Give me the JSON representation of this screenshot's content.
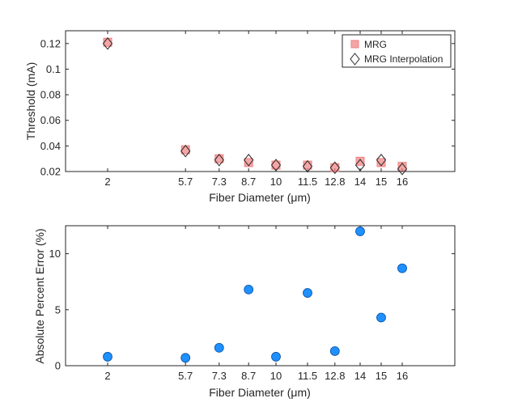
{
  "chart_data": [
    {
      "type": "scatter",
      "xlabel_main": "Fiber Diameter (",
      "xlabel_mu": "μ",
      "xlabel_end": "m)",
      "ylabel": "Threshold (mA)",
      "xlim": [
        0,
        18.5
      ],
      "ylim": [
        0.02,
        0.13
      ],
      "x_ticks": [
        2,
        5.7,
        7.3,
        8.7,
        10,
        11.5,
        12.8,
        14,
        15,
        16
      ],
      "x_tick_labels": [
        "2",
        "5.7",
        "7.3",
        "8.7",
        "10",
        "11.5",
        "12.8",
        "14",
        "15",
        "16"
      ],
      "y_ticks": [
        0.02,
        0.04,
        0.06,
        0.08,
        0.1,
        0.12
      ],
      "y_tick_labels": [
        "0.02",
        "0.04",
        "0.06",
        "0.08",
        "0.1",
        "0.12"
      ],
      "grid": false,
      "legend_position": "top-right",
      "series": [
        {
          "name": "MRG",
          "marker": "square",
          "color": "#f08080",
          "x": [
            2,
            5.7,
            7.3,
            8.7,
            10,
            11.5,
            12.8,
            14,
            15,
            16
          ],
          "y": [
            0.121,
            0.037,
            0.03,
            0.027,
            0.025,
            0.025,
            0.023,
            0.028,
            0.027,
            0.024
          ]
        },
        {
          "name": "MRG Interpolation",
          "marker": "diamond",
          "color": "#000000",
          "x": [
            2,
            5.7,
            7.3,
            8.7,
            10,
            11.5,
            12.8,
            14,
            15,
            16
          ],
          "y": [
            0.12,
            0.036,
            0.029,
            0.029,
            0.025,
            0.024,
            0.023,
            0.025,
            0.029,
            0.022
          ]
        }
      ]
    },
    {
      "type": "scatter",
      "xlabel_main": "Fiber Diameter (",
      "xlabel_mu": "μ",
      "xlabel_end": "m)",
      "ylabel": "Absolute Percent Error (%)",
      "xlim": [
        0,
        18.5
      ],
      "ylim": [
        0,
        12.5
      ],
      "x_ticks": [
        2,
        5.7,
        7.3,
        8.7,
        10,
        11.5,
        12.8,
        14,
        15,
        16
      ],
      "x_tick_labels": [
        "2",
        "5.7",
        "7.3",
        "8.7",
        "10",
        "11.5",
        "12.8",
        "14",
        "15",
        "16"
      ],
      "y_ticks": [
        0,
        5,
        10
      ],
      "y_tick_labels": [
        "0",
        "5",
        "10"
      ],
      "grid": false,
      "series": [
        {
          "marker": "circle",
          "color": "#1e90ff",
          "x": [
            2,
            5.7,
            7.3,
            8.7,
            10,
            11.5,
            12.8,
            14,
            15,
            16
          ],
          "y": [
            0.8,
            0.7,
            1.6,
            6.8,
            0.8,
            6.5,
            1.3,
            12.0,
            4.3,
            8.7
          ]
        }
      ]
    }
  ]
}
